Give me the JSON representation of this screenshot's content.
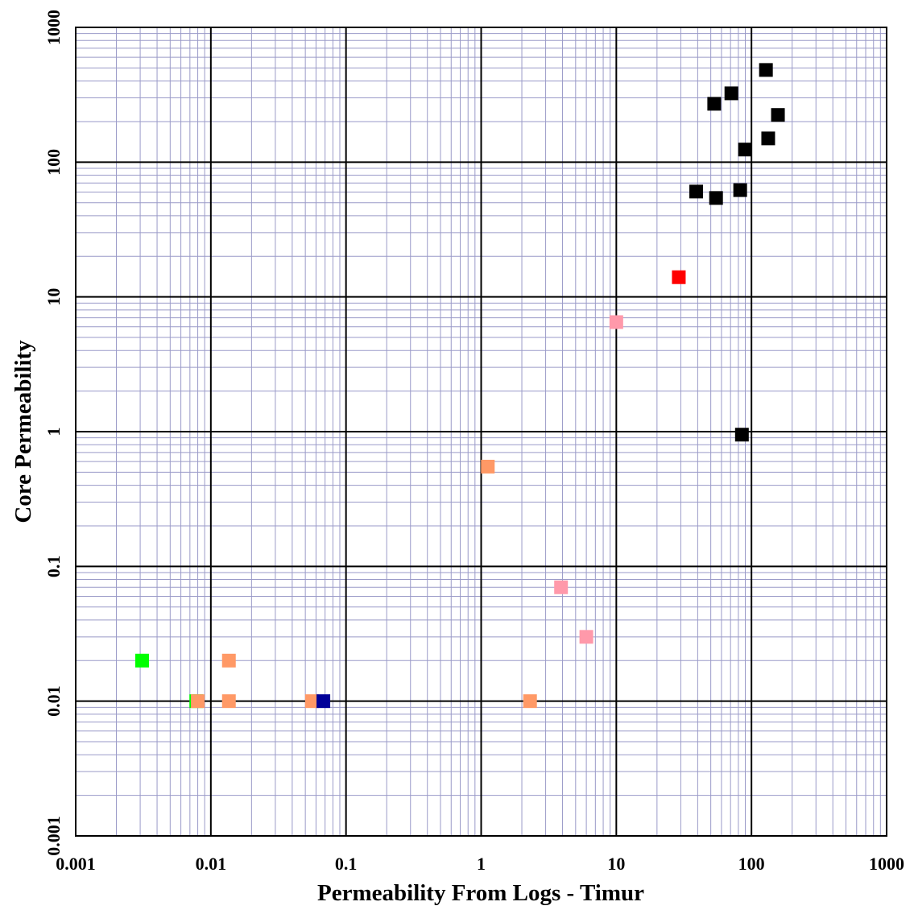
{
  "chart_data": {
    "type": "scatter",
    "x_label": "Permeability From Logs  -   Timur",
    "y_label": "Core Permeability",
    "xscale": "log",
    "yscale": "log",
    "xlim": [
      0.001,
      1000
    ],
    "ylim": [
      0.001,
      1000
    ],
    "xticks": [
      0.001,
      0.01,
      0.1,
      1,
      10,
      100,
      1000
    ],
    "yticks": [
      0.001,
      0.01,
      0.1,
      1,
      10,
      100,
      1000
    ],
    "grid": true,
    "minor_grid": true,
    "series": [
      {
        "color": "#000000",
        "x": [
          128,
          71,
          53,
          157,
          133,
          89.6,
          39,
          54.7,
          82.5,
          85
        ],
        "y": [
          483,
          324,
          271,
          224,
          150,
          124,
          60.5,
          54.2,
          62,
          0.95
        ]
      },
      {
        "color": "#ff0000",
        "x": [
          29
        ],
        "y": [
          14
        ]
      },
      {
        "color": "#ff99aa",
        "x": [
          10,
          3.9,
          6
        ],
        "y": [
          6.5,
          0.07,
          0.03
        ]
      },
      {
        "color": "#00ff00",
        "x": [
          0.0031,
          0.0078
        ],
        "y": [
          0.02,
          0.01
        ]
      },
      {
        "color": "#ff9966",
        "x": [
          1.12,
          0.0136,
          0.008,
          0.0136,
          0.056,
          2.3
        ],
        "y": [
          0.55,
          0.02,
          0.01,
          0.01,
          0.01,
          0.01
        ]
      },
      {
        "color": "#000099",
        "x": [
          0.068
        ],
        "y": [
          0.01
        ]
      }
    ]
  }
}
